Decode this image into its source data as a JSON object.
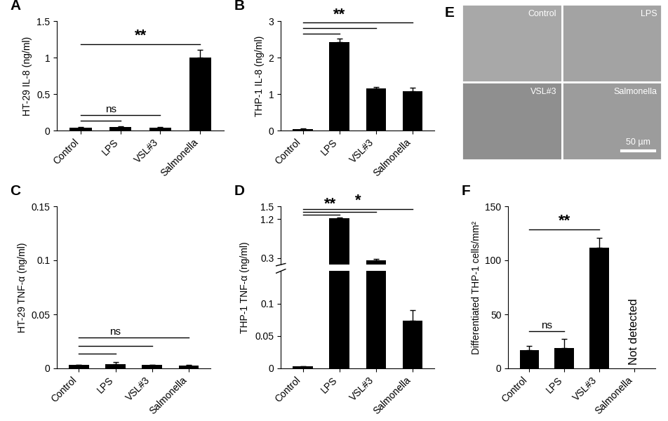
{
  "chart_data": [
    {
      "type": "bar",
      "panel_label": "A",
      "y_label": "HT-29 IL-8 (ng/ml)",
      "categories": [
        "Control",
        "LPS",
        "VSL#3",
        "Salmonella"
      ],
      "values": [
        0.04,
        0.05,
        0.04,
        1.0
      ],
      "errors": [
        0.005,
        0.01,
        0.005,
        0.11
      ],
      "color": "#000000",
      "ylim": [
        0,
        1.5
      ],
      "yticks": [
        0,
        0.5,
        1,
        1.5
      ],
      "annotations": [
        {
          "text": "ns",
          "pairs": [
            [
              "Control",
              "LPS"
            ],
            [
              "Control",
              "VSL#3"
            ]
          ]
        },
        {
          "text": "**",
          "pairs": [
            [
              "Control",
              "Salmonella"
            ]
          ]
        }
      ]
    },
    {
      "type": "bar",
      "panel_label": "B",
      "y_label": "THP-1 IL-8 (ng/ml)",
      "categories": [
        "Control",
        "LPS",
        "VSL#3",
        "Salmonella"
      ],
      "values": [
        0.04,
        2.43,
        1.15,
        1.08
      ],
      "errors": [
        0.01,
        0.08,
        0.04,
        0.1
      ],
      "color": "#000000",
      "ylim": [
        0,
        3
      ],
      "yticks": [
        0,
        1,
        2,
        3
      ],
      "annotations": [
        {
          "text": "**",
          "pairs": [
            [
              "Control",
              "LPS"
            ],
            [
              "Control",
              "VSL#3"
            ],
            [
              "Control",
              "Salmonella"
            ]
          ]
        }
      ]
    },
    {
      "type": "bar",
      "panel_label": "C",
      "y_label": "HT-29 TNF-α (ng/ml)",
      "categories": [
        "Control",
        "LPS",
        "VSL#3",
        "Salmonella"
      ],
      "values": [
        0.003,
        0.004,
        0.003,
        0.0025
      ],
      "errors": [
        0.0005,
        0.002,
        0.0005,
        0.0005
      ],
      "color": "#000000",
      "ylim": [
        0,
        0.15
      ],
      "yticks": [
        0,
        0.05,
        0.1,
        0.15
      ],
      "annotations": [
        {
          "text": "ns",
          "pairs": [
            [
              "Control",
              "LPS"
            ],
            [
              "Control",
              "VSL#3"
            ],
            [
              "Control",
              "Salmonella"
            ]
          ]
        }
      ]
    },
    {
      "type": "bar",
      "panel_label": "D",
      "y_label": "THP-1 TNF-α (ng/ml)",
      "categories": [
        "Control",
        "LPS",
        "VSL#3",
        "Salmonella"
      ],
      "values": [
        0.003,
        1.22,
        0.25,
        0.074
      ],
      "errors": [
        0.0005,
        0.02,
        0.03,
        0.016
      ],
      "color": "#000000",
      "ylim": [
        [
          0,
          0.15
        ],
        [
          0.15,
          1.5
        ]
      ],
      "yticks": [
        [
          0,
          0.05,
          0.1
        ],
        [
          0.3,
          1.2,
          1.5
        ]
      ],
      "annotations": [
        {
          "text": "**",
          "pairs": [
            [
              "Control",
              "LPS"
            ],
            [
              "Control",
              "VSL#3"
            ]
          ]
        },
        {
          "text": "*",
          "pairs": [
            [
              "Control",
              "Salmonella"
            ]
          ]
        }
      ]
    },
    {
      "type": "bar",
      "panel_label": "F",
      "y_label": "Differentiated THP-1 cells/mm²",
      "categories": [
        "Control",
        "LPS",
        "VSL#3",
        "Salmonella"
      ],
      "values": [
        17,
        19,
        112,
        null
      ],
      "errors": [
        4,
        8,
        9,
        null
      ],
      "value_labels": [
        null,
        null,
        null,
        "Not detected"
      ],
      "color": "#000000",
      "ylim": [
        0,
        150
      ],
      "yticks": [
        0,
        50,
        100,
        150
      ],
      "annotations": [
        {
          "text": "ns",
          "pairs": [
            [
              "Control",
              "LPS"
            ]
          ]
        },
        {
          "text": "**",
          "pairs": [
            [
              "Control",
              "VSL#3"
            ]
          ]
        }
      ]
    }
  ],
  "image_panel": {
    "panel_label": "E",
    "quadrants": [
      "Control",
      "LPS",
      "VSL#3",
      "Salmonella"
    ],
    "scale_bar": "50 µm"
  }
}
